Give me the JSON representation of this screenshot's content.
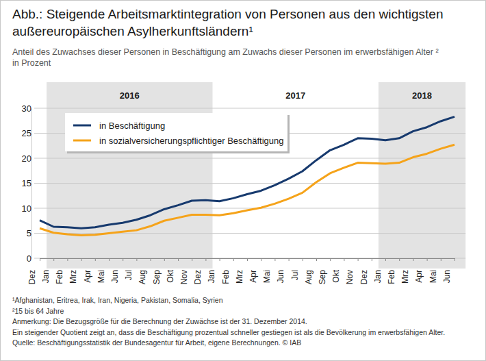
{
  "chart_data": {
    "type": "line",
    "title": [
      "Abb.: Steigende Arbeitsmarktintegration von Personen aus den wichtigsten",
      "außereuropäischen Asylherkunftsländern¹"
    ],
    "subtitle": [
      "Anteil des Zuwachses dieser Personen in Beschäftigung am Zuwachs dieser Personen im erwerbsfähigen Alter ²",
      "in Prozent"
    ],
    "categories": [
      "Dez",
      "Jan",
      "Feb",
      "Mrz",
      "Apr",
      "Mai",
      "Jun",
      "Jul",
      "Aug",
      "Sep",
      "Okt",
      "Nov",
      "Dez",
      "Jan",
      "Feb",
      "Mrz",
      "Apr",
      "Mai",
      "Jun",
      "Jul",
      "Aug",
      "Sep",
      "Okt",
      "Nov",
      "Dez",
      "Jan",
      "Feb",
      "Mrz",
      "Apr",
      "Mai",
      "Jun"
    ],
    "series": [
      {
        "name": "in Beschäftigung",
        "color": "#173a6e",
        "values": [
          7.6,
          6.3,
          6.2,
          6.0,
          6.2,
          6.7,
          7.1,
          7.7,
          8.6,
          9.8,
          10.6,
          11.5,
          11.6,
          11.4,
          12.0,
          12.8,
          13.5,
          14.6,
          15.9,
          17.4,
          19.6,
          21.6,
          22.7,
          24.0,
          23.9,
          23.6,
          24.0,
          25.4,
          26.2,
          27.4,
          28.3
        ]
      },
      {
        "name": "in sozialversicherungspflichtiger Beschäftigung",
        "color": "#f5a31a",
        "values": [
          6.0,
          5.1,
          4.8,
          4.6,
          4.7,
          5.0,
          5.3,
          5.6,
          6.4,
          7.5,
          8.1,
          8.7,
          8.7,
          8.6,
          9.0,
          9.6,
          10.1,
          10.9,
          11.9,
          13.1,
          15.2,
          17.0,
          18.1,
          19.1,
          19.0,
          18.9,
          19.1,
          20.2,
          20.9,
          21.9,
          22.7
        ]
      }
    ],
    "ylim": [
      0,
      30
    ],
    "yticks": [
      0,
      5,
      10,
      15,
      20,
      25,
      30
    ],
    "grid": true,
    "legend": "top-left",
    "year_bands": [
      {
        "label": "2016",
        "start": 1,
        "end": 12
      },
      {
        "label": "2017",
        "start": 13,
        "end": 24
      },
      {
        "label": "2018",
        "start": 25,
        "end": 30
      }
    ],
    "notes": [
      "¹Afghanistan, Eritrea, Irak, Iran, Nigeria, Pakistan, Somalia, Syrien",
      "²15 bis 64 Jahre",
      "Anmerkung: Die Bezugsgröße für die Berechnung der Zuwächse ist der 31. Dezember 2014.",
      "Ein steigender Quotient zeigt an, dass die Beschäftigung prozentual schneller gestiegen ist als die Bevölkerung im erwerbsfähigen Alter.",
      "Quelle: Beschäftigungsstatistik der Bundesagentur für Arbeit, eigene Berechnungen. © IAB"
    ]
  }
}
